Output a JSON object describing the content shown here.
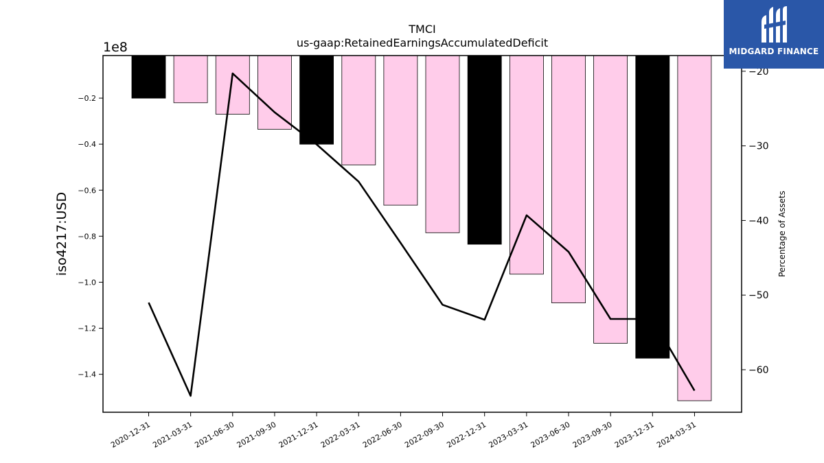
{
  "chart_data": {
    "type": "bar",
    "title": "TMCI",
    "subtitle": "us-gaap:RetainedEarningsAccumulatedDeficit",
    "ylabel": "iso4217:USD",
    "y2label": "Percentage of Assets",
    "y_offset_label": "1e8",
    "categories": [
      "2020-12-31",
      "2021-03-31",
      "2021-06-30",
      "2021-09-30",
      "2021-12-31",
      "2022-03-31",
      "2022-06-30",
      "2022-09-30",
      "2022-12-31",
      "2023-03-31",
      "2023-06-30",
      "2023-09-30",
      "2023-12-31",
      "2024-03-31"
    ],
    "series": [
      {
        "type": "bar",
        "values": [
          -0.2,
          -0.22,
          -0.27,
          -0.335,
          -0.4,
          -0.49,
          -0.665,
          -0.785,
          -0.835,
          -0.965,
          -1.09,
          -1.265,
          -1.33,
          -1.515
        ],
        "highlight": [
          true,
          false,
          false,
          false,
          true,
          false,
          false,
          false,
          true,
          false,
          false,
          false,
          true,
          false
        ],
        "colors": {
          "normal": "#ffccea",
          "highlight": "#000000"
        },
        "axis": "left"
      },
      {
        "type": "line",
        "values": [
          -51,
          -63.5,
          -20.3,
          -25.5,
          -29.8,
          -34.8,
          -43,
          -51.3,
          -53.3,
          -39.3,
          -44.2,
          -53.2,
          -53.2,
          -62.8
        ],
        "color": "#000000",
        "axis": "right"
      }
    ],
    "ylim": [
      -1.565,
      -0.015
    ],
    "yticks": [
      -1.4,
      -1.2,
      -1.0,
      -0.8,
      -0.6,
      -0.4,
      -0.2
    ],
    "ytick_labels": [
      "−1.4",
      "−1.2",
      "−1.0",
      "−0.8",
      "−0.6",
      "−0.4",
      "−0.2"
    ],
    "y2lim": [
      -65.7,
      -17.9
    ],
    "y2ticks": [
      -60,
      -50,
      -40,
      -30,
      -20
    ],
    "y2tick_labels": [
      "−60",
      "−50",
      "−40",
      "−30",
      "−20"
    ],
    "grid": false,
    "legend": "none"
  },
  "logo": {
    "text": "MIDGARD FINANCE",
    "background": "#2a57a8"
  }
}
